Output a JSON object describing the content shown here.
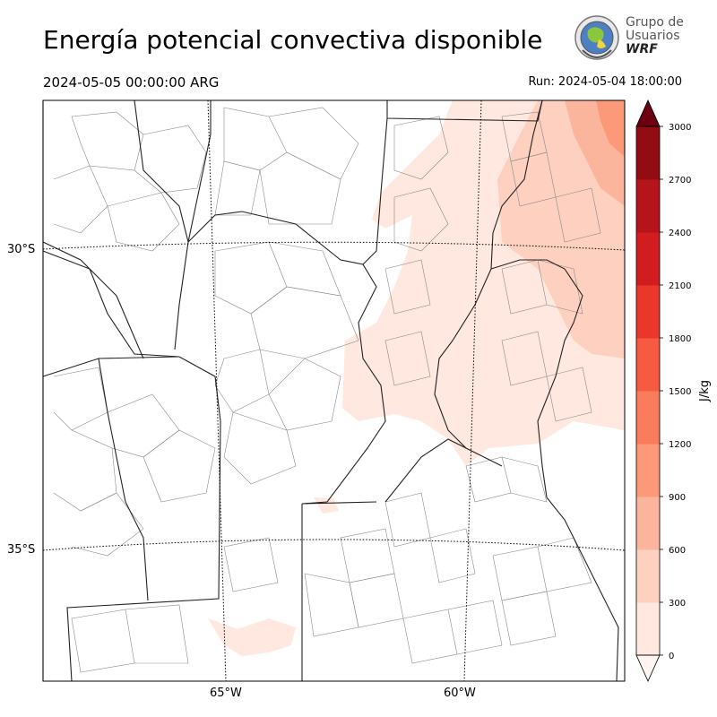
{
  "header": {
    "title": "Energía potencial convectiva disponible",
    "valid_time": "2024-05-05 00:00:00 ARG",
    "run_time": "Run: 2024-05-04 18:00:00"
  },
  "logo": {
    "line1": "Grupo de",
    "line2": "Usuarios",
    "line3": "WRF"
  },
  "map": {
    "lat_labels": [
      "30°S",
      "35°S"
    ],
    "lon_labels": [
      "65°W",
      "60°W"
    ],
    "colors": {
      "province_border": "#222222",
      "department_border": "#888888",
      "graticule": "#000000",
      "frame": "#000000"
    }
  },
  "colorbar": {
    "label": "J/kg",
    "ticks": [
      "0",
      "300",
      "600",
      "900",
      "1200",
      "1500",
      "1800",
      "2100",
      "2400",
      "2700",
      "3000"
    ],
    "colors": [
      "#fee8df",
      "#fdd0c0",
      "#fcb59d",
      "#fc9979",
      "#fb7c5c",
      "#f65b41",
      "#e9382b",
      "#d21d20",
      "#b4141a",
      "#920c14",
      "#6b0010"
    ],
    "extend": "both"
  }
}
